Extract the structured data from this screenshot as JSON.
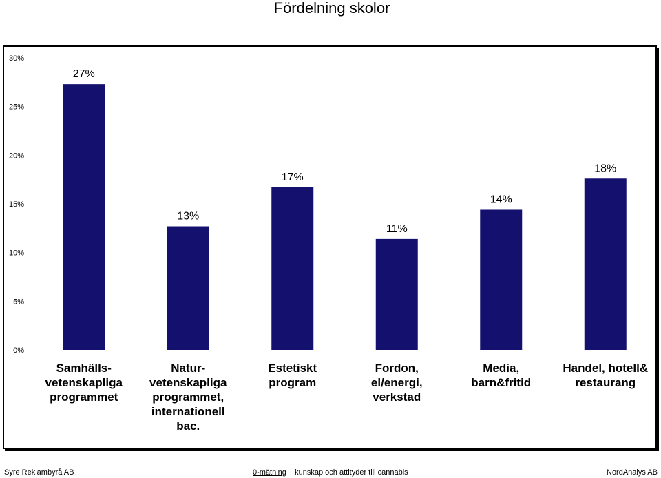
{
  "title": "Fördelning skolor",
  "chart_data": {
    "type": "bar",
    "title": "Fördelning skolor",
    "categories": [
      "Samhälls-\nvetenskapliga\nprogrammet",
      "Natur-\nvetenskapliga\nprogrammet,\ninternationell\nbac.",
      "Estetiskt\nprogram",
      "Fordon,\nel/energi,\nverkstad",
      "Media,\nbarn&fritid",
      "Handel, hotell&\nrestaurang"
    ],
    "values": [
      27.3,
      12.7,
      16.7,
      11.4,
      14.4,
      17.6
    ],
    "data_labels": [
      "27%",
      "13%",
      "17%",
      "11%",
      "14%",
      "18%"
    ],
    "yticks": [
      "0%",
      "5%",
      "10%",
      "15%",
      "20%",
      "25%",
      "30%"
    ],
    "ylim": [
      0,
      30
    ],
    "grid": false,
    "legend": "none",
    "colors": {
      "bar": "#13106E"
    }
  },
  "footer": {
    "left": "Syre Reklambyrå AB",
    "center": "0-mätning",
    "center_rest": "kunskap och attityder till cannabis",
    "right": "NordAnalys AB"
  }
}
